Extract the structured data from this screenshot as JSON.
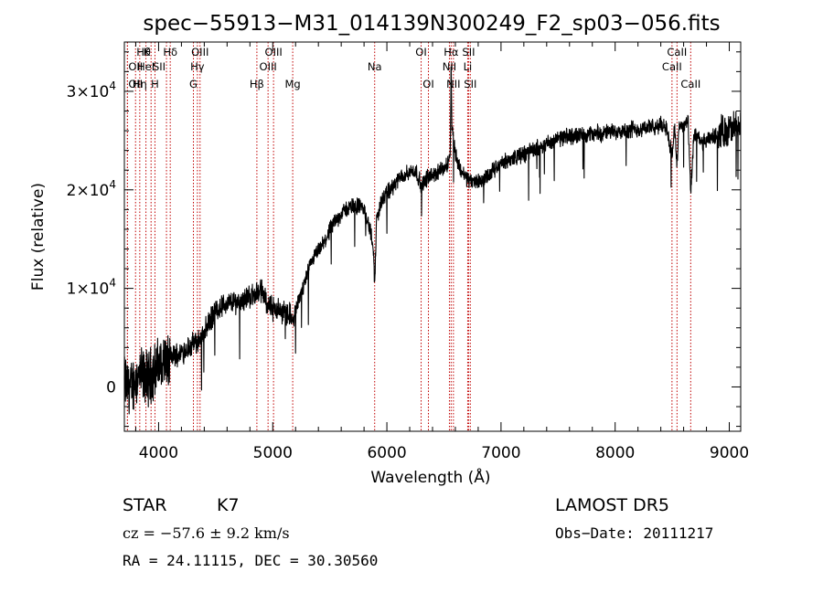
{
  "chart_data": {
    "type": "line",
    "title": "spec−55913−M31_014139N300249_F2_sp03−056.fits",
    "xlabel": "Wavelength (Å)",
    "ylabel": "Flux (relative)",
    "xlim": [
      3700,
      9100
    ],
    "ylim": [
      -4500,
      35000
    ],
    "x_ticks": [
      {
        "value": 4000,
        "label": "4000"
      },
      {
        "value": 5000,
        "label": "5000"
      },
      {
        "value": 6000,
        "label": "6000"
      },
      {
        "value": 7000,
        "label": "7000"
      },
      {
        "value": 8000,
        "label": "8000"
      },
      {
        "value": 9000,
        "label": "9000"
      }
    ],
    "y_ticks": [
      {
        "value": 0,
        "mant": "0",
        "exp": ""
      },
      {
        "value": 10000,
        "mant": "1×10",
        "exp": "4"
      },
      {
        "value": 20000,
        "mant": "2×10",
        "exp": "4"
      },
      {
        "value": 30000,
        "mant": "3×10",
        "exp": "4"
      }
    ],
    "series": [
      {
        "x": [
          3700,
          3750,
          3800,
          3850,
          3900,
          3950,
          4000,
          4050,
          4100,
          4150,
          4200,
          4250,
          4300,
          4350,
          4400,
          4450,
          4500,
          4550,
          4600,
          4650,
          4700,
          4750,
          4800,
          4850,
          4880,
          4900,
          4920,
          4950,
          5000,
          5050,
          5100,
          5150,
          5180,
          5200,
          5250,
          5300,
          5350,
          5400,
          5450,
          5500,
          5550,
          5600,
          5650,
          5700,
          5750,
          5800,
          5850,
          5880,
          5893,
          5910,
          5950,
          6000,
          6050,
          6100,
          6150,
          6200,
          6250,
          6280,
          6300,
          6350,
          6400,
          6450,
          6500,
          6530,
          6555,
          6563,
          6570,
          6590,
          6620,
          6650,
          6700,
          6750,
          6800,
          6850,
          6900,
          6950,
          7000,
          7050,
          7100,
          7150,
          7200,
          7250,
          7300,
          7350,
          7400,
          7450,
          7500,
          7550,
          7600,
          7650,
          7700,
          7750,
          7800,
          7850,
          7900,
          7950,
          8000,
          8050,
          8100,
          8150,
          8200,
          8250,
          8300,
          8350,
          8400,
          8450,
          8498,
          8520,
          8542,
          8560,
          8600,
          8640,
          8662,
          8690,
          8720,
          8750,
          8800,
          8850,
          8900,
          8950,
          9000,
          9050,
          9100
        ],
        "y": [
          500,
          -200,
          800,
          1200,
          900,
          1500,
          2200,
          2600,
          2900,
          3300,
          3500,
          3900,
          4300,
          4700,
          5600,
          6700,
          7700,
          8200,
          8400,
          8600,
          8700,
          8900,
          9200,
          9400,
          9700,
          9800,
          9300,
          8600,
          8100,
          7800,
          7600,
          7400,
          6500,
          7800,
          9600,
          11300,
          12900,
          13800,
          14600,
          15900,
          16800,
          17600,
          18100,
          18300,
          18400,
          18000,
          16000,
          14500,
          10200,
          17000,
          18800,
          19600,
          20300,
          21000,
          21500,
          21800,
          22000,
          21200,
          20300,
          21200,
          21500,
          21800,
          22200,
          22500,
          24000,
          33000,
          26500,
          24500,
          22700,
          22000,
          21200,
          20800,
          20900,
          21000,
          21500,
          22200,
          22600,
          22900,
          23200,
          23400,
          23600,
          23900,
          24100,
          24500,
          24700,
          24900,
          25100,
          25300,
          25400,
          25600,
          25500,
          25700,
          25600,
          25800,
          25700,
          25900,
          25900,
          26100,
          26000,
          26200,
          26100,
          26300,
          26400,
          26200,
          26600,
          26400,
          23500,
          26400,
          22500,
          26600,
          26500,
          26800,
          19500,
          25600,
          25300,
          24800,
          24900,
          25300,
          25600,
          25900,
          26100,
          26200,
          26300
        ]
      }
    ],
    "lines": [
      {
        "label": "Hθ",
        "x": 3798,
        "row": 1,
        "pos": "right"
      },
      {
        "label": "OII",
        "x": 3727,
        "row": 2,
        "pos": "right"
      },
      {
        "label": "OII",
        "x": 3727,
        "row": 3,
        "pos": "right"
      },
      {
        "label": "K",
        "x": 3934,
        "row": 1,
        "pos": "left"
      },
      {
        "label": "HeI",
        "x": 3889,
        "row": 2,
        "pos": "center"
      },
      {
        "label": "Hη",
        "x": 3835,
        "row": 3,
        "pos": "center"
      },
      {
        "label": "H",
        "x": 3968,
        "row": 3,
        "pos": "center"
      },
      {
        "label": "Hδ",
        "x": 4102,
        "row": 1,
        "pos": "center"
      },
      {
        "label": "SII",
        "x": 4069,
        "row": 2,
        "pos": "left"
      },
      {
        "label": "OIII",
        "x": 4363,
        "row": 1,
        "pos": "center"
      },
      {
        "label": "Hγ",
        "x": 4340,
        "row": 2,
        "pos": "center"
      },
      {
        "label": "G",
        "x": 4305,
        "row": 3,
        "pos": "center"
      },
      {
        "label": "OIII",
        "x": 5007,
        "row": 1,
        "pos": "center"
      },
      {
        "label": "OIII",
        "x": 4959,
        "row": 2,
        "pos": "center"
      },
      {
        "label": "Hβ",
        "x": 4861,
        "row": 3,
        "pos": "center"
      },
      {
        "label": "Mg",
        "x": 5175,
        "row": 3,
        "pos": "center"
      },
      {
        "label": "Na",
        "x": 5893,
        "row": 2,
        "pos": "center"
      },
      {
        "label": "OI",
        "x": 6300,
        "row": 1,
        "pos": "center"
      },
      {
        "label": "OI",
        "x": 6364,
        "row": 3,
        "pos": "center"
      },
      {
        "label": "Hα",
        "x": 6563,
        "row": 1,
        "pos": "center"
      },
      {
        "label": "NII",
        "x": 6548,
        "row": 2,
        "pos": "center"
      },
      {
        "label": "NII",
        "x": 6583,
        "row": 3,
        "pos": "center"
      },
      {
        "label": "SII",
        "x": 6716,
        "row": 1,
        "pos": "center"
      },
      {
        "label": "Li",
        "x": 6708,
        "row": 2,
        "pos": "center"
      },
      {
        "label": "SII",
        "x": 6731,
        "row": 3,
        "pos": "center"
      },
      {
        "label": "CaII",
        "x": 8542,
        "row": 1,
        "pos": "center"
      },
      {
        "label": "CaII",
        "x": 8498,
        "row": 2,
        "pos": "center"
      },
      {
        "label": "CaII",
        "x": 8662,
        "row": 3,
        "pos": "center"
      }
    ],
    "line_color": "#c00000",
    "spectrum_color": "#000000"
  },
  "info": {
    "class_label": "STAR",
    "subclass": "K7",
    "survey": "LAMOST DR5",
    "cz_text": "cz = −57.6 ± 9.2 km/s",
    "obs_date": "Obs−Date: 20111217",
    "coords": "RA =  24.11115, DEC =  30.30560"
  }
}
